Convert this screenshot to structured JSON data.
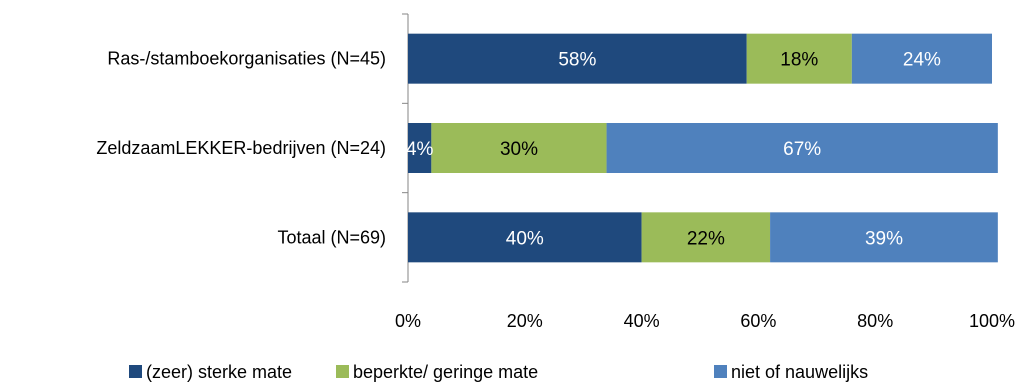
{
  "chart_data": {
    "type": "bar",
    "orientation": "horizontal",
    "stacked": true,
    "categories": [
      "Ras-/stamboekorganisaties (N=45)",
      "ZeldzaamLEKKER-bedrijven (N=24)",
      "Totaal (N=69)"
    ],
    "series": [
      {
        "name": "(zeer) sterke mate",
        "values": [
          58,
          4,
          40
        ],
        "labels": [
          "58%",
          "4%",
          "40%"
        ],
        "color": "#1f497d",
        "label_color": "#ffffff"
      },
      {
        "name": "beperkte/ geringe mate",
        "values": [
          18,
          30,
          22
        ],
        "labels": [
          "18%",
          "30%",
          "22%"
        ],
        "color": "#9bbb59",
        "label_color": "#000000"
      },
      {
        "name": "niet of nauwelijks",
        "values": [
          24,
          67,
          39
        ],
        "labels": [
          "24%",
          "67%",
          "39%"
        ],
        "color": "#4f81bd",
        "label_color": "#ffffff"
      }
    ],
    "xlim": [
      0,
      100
    ],
    "xticks": [
      "0%",
      "20%",
      "40%",
      "60%",
      "80%",
      "100%"
    ],
    "xlabel": "",
    "ylabel": "",
    "grid": false,
    "legend_position": "bottom"
  }
}
